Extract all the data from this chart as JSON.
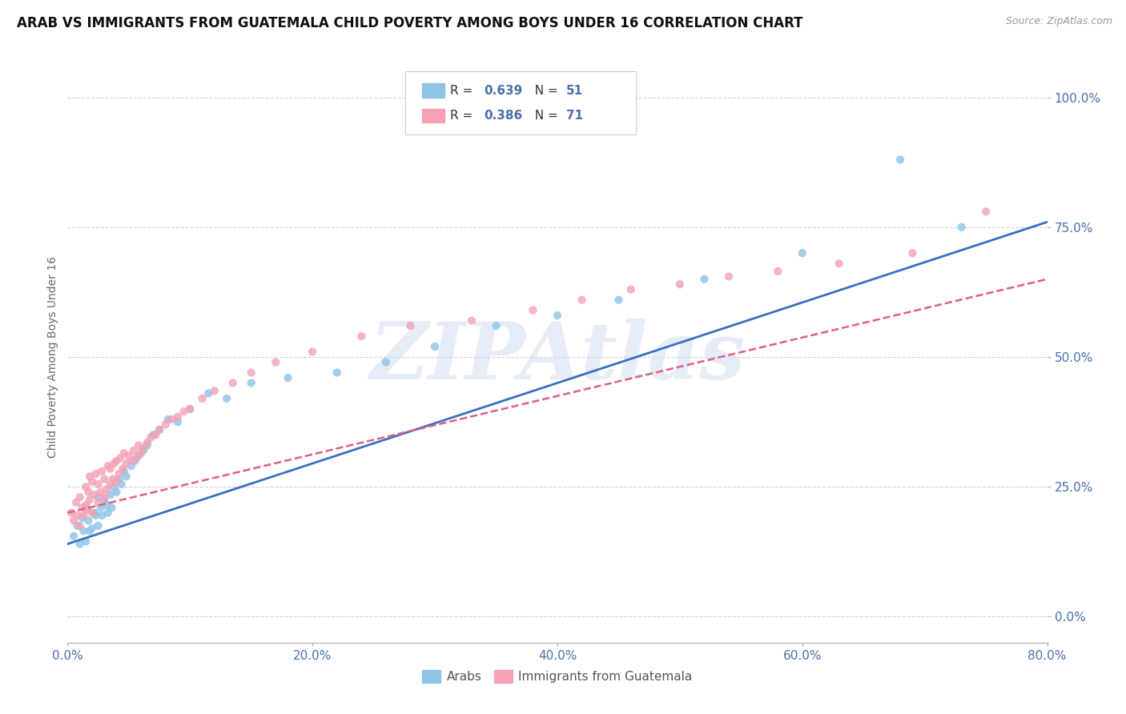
{
  "title": "ARAB VS IMMIGRANTS FROM GUATEMALA CHILD POVERTY AMONG BOYS UNDER 16 CORRELATION CHART",
  "source": "Source: ZipAtlas.com",
  "ylabel": "Child Poverty Among Boys Under 16",
  "xlim": [
    0.0,
    0.8
  ],
  "ylim": [
    -0.05,
    1.05
  ],
  "xticks": [
    0.0,
    0.2,
    0.4,
    0.6,
    0.8
  ],
  "xtick_labels": [
    "0.0%",
    "20.0%",
    "40.0%",
    "60.0%",
    "80.0%"
  ],
  "yticks": [
    0.0,
    0.25,
    0.5,
    0.75,
    1.0
  ],
  "ytick_labels": [
    "0.0%",
    "25.0%",
    "50.0%",
    "75.0%",
    "100.0%"
  ],
  "arab_color": "#8ec4e8",
  "guatemala_color": "#f4a0b5",
  "arab_line_color": "#3a6fbe",
  "guatemala_line_color": "#e06080",
  "R_arab": 0.639,
  "N_arab": 51,
  "R_guatemala": 0.386,
  "N_guatemala": 71,
  "watermark": "ZIPAtlas",
  "background_color": "#ffffff",
  "grid_color": "#c8d4e8",
  "arab_x": [
    0.005,
    0.008,
    0.01,
    0.012,
    0.013,
    0.015,
    0.015,
    0.017,
    0.018,
    0.02,
    0.022,
    0.023,
    0.025,
    0.025,
    0.027,
    0.028,
    0.03,
    0.032,
    0.033,
    0.035,
    0.036,
    0.038,
    0.04,
    0.042,
    0.044,
    0.046,
    0.048,
    0.052,
    0.055,
    0.058,
    0.062,
    0.065,
    0.07,
    0.075,
    0.082,
    0.09,
    0.1,
    0.115,
    0.13,
    0.15,
    0.18,
    0.22,
    0.26,
    0.3,
    0.35,
    0.4,
    0.45,
    0.52,
    0.6,
    0.68,
    0.73
  ],
  "arab_y": [
    0.155,
    0.175,
    0.14,
    0.19,
    0.165,
    0.145,
    0.21,
    0.185,
    0.165,
    0.17,
    0.2,
    0.195,
    0.175,
    0.23,
    0.21,
    0.195,
    0.225,
    0.215,
    0.2,
    0.235,
    0.21,
    0.25,
    0.24,
    0.265,
    0.255,
    0.28,
    0.27,
    0.29,
    0.3,
    0.31,
    0.32,
    0.33,
    0.35,
    0.36,
    0.38,
    0.375,
    0.4,
    0.43,
    0.42,
    0.45,
    0.46,
    0.47,
    0.49,
    0.52,
    0.56,
    0.58,
    0.61,
    0.65,
    0.7,
    0.88,
    0.75
  ],
  "guatemala_x": [
    0.003,
    0.005,
    0.007,
    0.008,
    0.01,
    0.01,
    0.012,
    0.013,
    0.015,
    0.015,
    0.016,
    0.017,
    0.018,
    0.018,
    0.02,
    0.02,
    0.022,
    0.023,
    0.025,
    0.025,
    0.027,
    0.028,
    0.03,
    0.03,
    0.032,
    0.033,
    0.035,
    0.035,
    0.037,
    0.038,
    0.04,
    0.04,
    0.042,
    0.043,
    0.045,
    0.046,
    0.048,
    0.05,
    0.052,
    0.054,
    0.056,
    0.058,
    0.06,
    0.062,
    0.065,
    0.068,
    0.072,
    0.075,
    0.08,
    0.085,
    0.09,
    0.095,
    0.1,
    0.11,
    0.12,
    0.135,
    0.15,
    0.17,
    0.2,
    0.24,
    0.28,
    0.33,
    0.38,
    0.42,
    0.46,
    0.5,
    0.54,
    0.58,
    0.63,
    0.69,
    0.75
  ],
  "guatemala_y": [
    0.2,
    0.185,
    0.22,
    0.195,
    0.175,
    0.23,
    0.21,
    0.195,
    0.215,
    0.25,
    0.205,
    0.24,
    0.225,
    0.27,
    0.2,
    0.26,
    0.235,
    0.275,
    0.22,
    0.255,
    0.24,
    0.28,
    0.23,
    0.265,
    0.245,
    0.29,
    0.255,
    0.285,
    0.265,
    0.295,
    0.26,
    0.3,
    0.275,
    0.305,
    0.285,
    0.315,
    0.295,
    0.31,
    0.3,
    0.32,
    0.305,
    0.33,
    0.315,
    0.325,
    0.335,
    0.345,
    0.35,
    0.36,
    0.37,
    0.38,
    0.385,
    0.395,
    0.4,
    0.42,
    0.435,
    0.45,
    0.47,
    0.49,
    0.51,
    0.54,
    0.56,
    0.57,
    0.59,
    0.61,
    0.63,
    0.64,
    0.655,
    0.665,
    0.68,
    0.7,
    0.78
  ]
}
